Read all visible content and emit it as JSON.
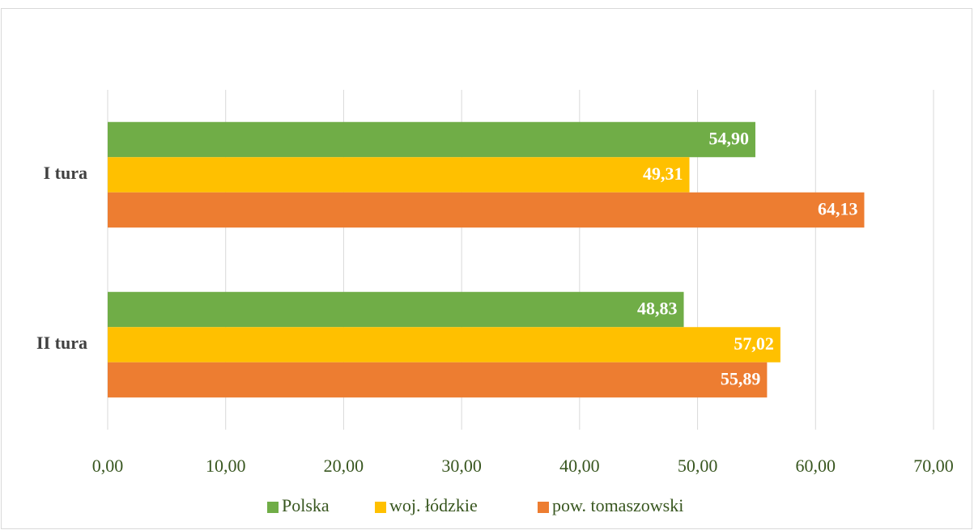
{
  "chart_data": {
    "type": "bar",
    "orientation": "horizontal",
    "categories": [
      "I tura",
      "II tura"
    ],
    "series": [
      {
        "name": "Polska",
        "color": "#70ad47",
        "values": [
          54.9,
          48.83
        ],
        "value_labels": [
          "54,90",
          "48,83"
        ]
      },
      {
        "name": "woj. łódzkie",
        "color": "#ffc000",
        "values": [
          49.31,
          57.02
        ],
        "value_labels": [
          "49,31",
          "57,02"
        ]
      },
      {
        "name": "pow. tomaszowski",
        "color": "#ed7d31",
        "values": [
          64.13,
          55.89
        ],
        "value_labels": [
          "64,13",
          "55,89"
        ]
      }
    ],
    "xlim": [
      0,
      70
    ],
    "xticks": [
      {
        "value": 0,
        "label": "0,00"
      },
      {
        "value": 10,
        "label": "10,00"
      },
      {
        "value": 20,
        "label": "20,00"
      },
      {
        "value": 30,
        "label": "30,00"
      },
      {
        "value": 40,
        "label": "40,00"
      },
      {
        "value": 50,
        "label": "50,00"
      },
      {
        "value": 60,
        "label": "60,00"
      },
      {
        "value": 70,
        "label": "70,00"
      }
    ],
    "grid": true,
    "legend": "bottom"
  }
}
